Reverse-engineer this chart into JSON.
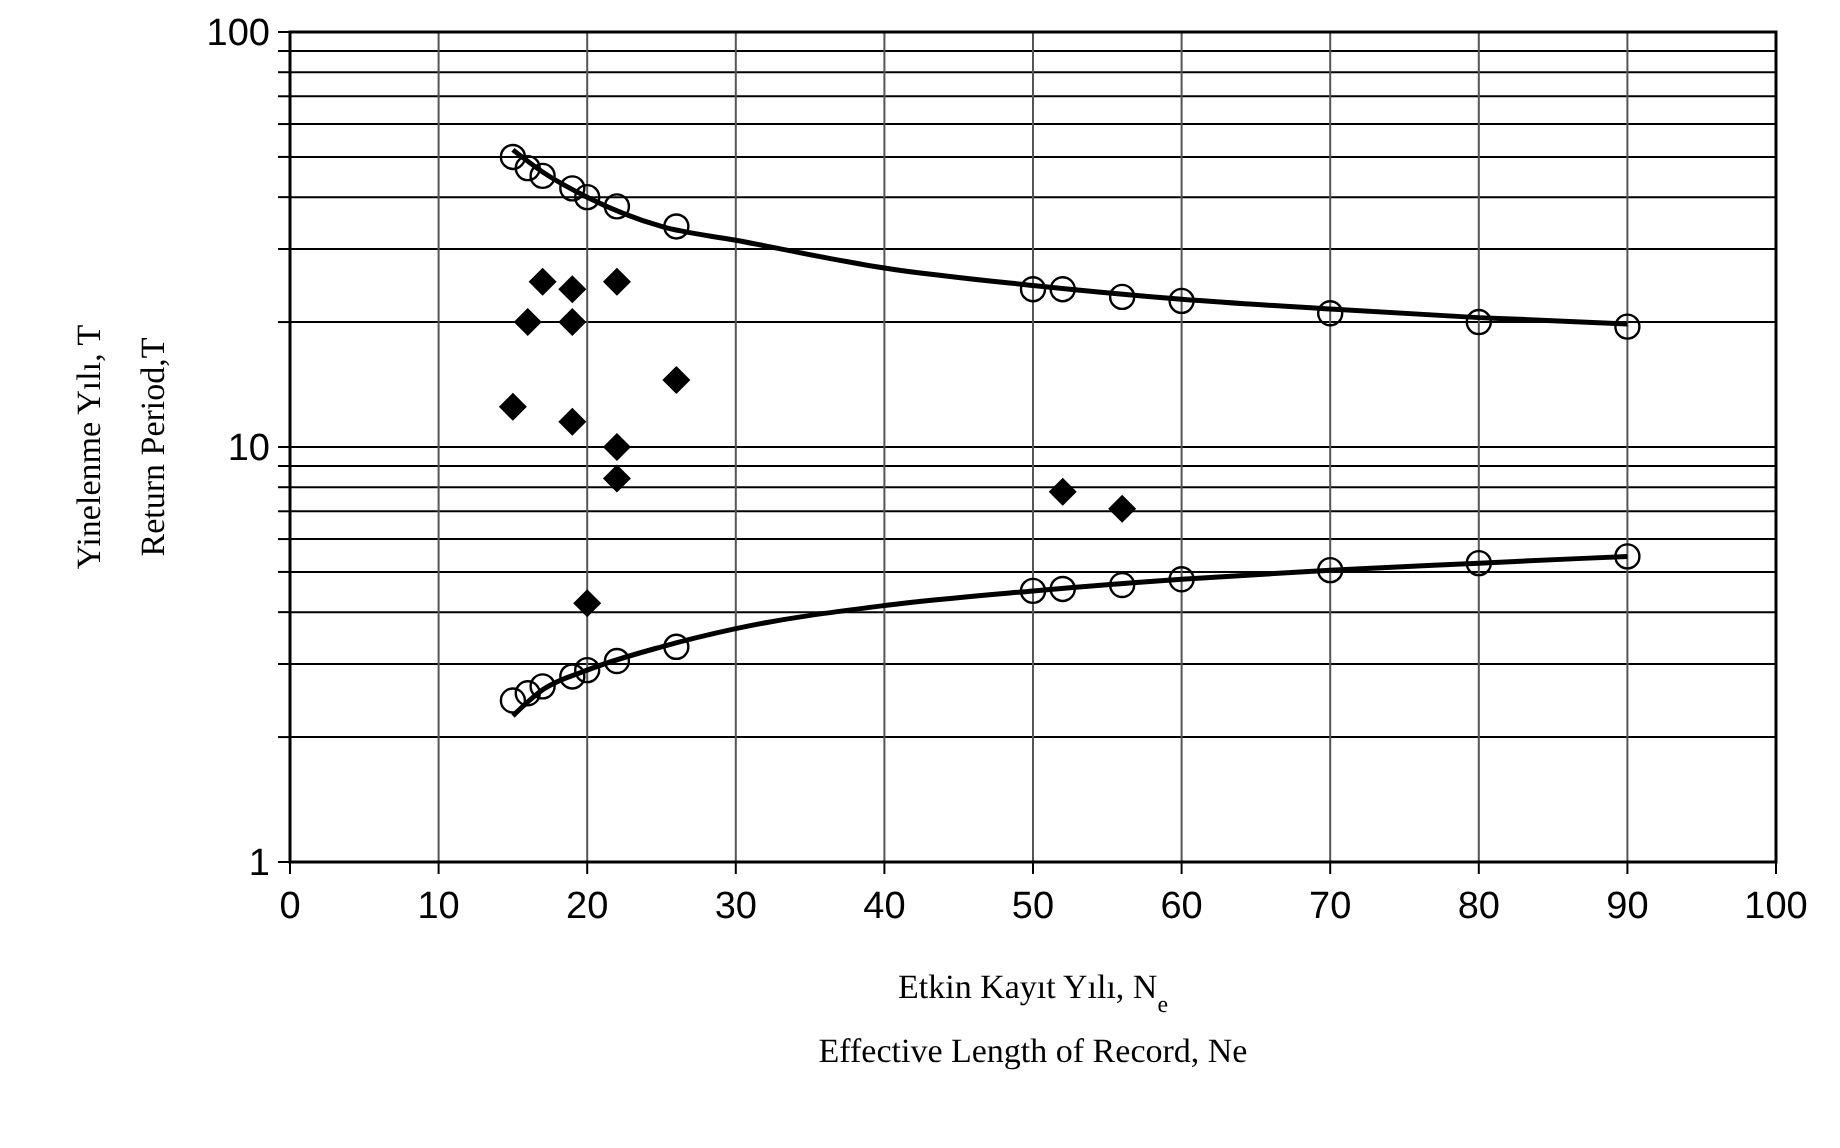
{
  "chart_data": {
    "type": "scatter",
    "xlabel": "Etkin Kayıt Yılı, N$_{e}$\nEffective Length of Record, Ne",
    "ylabel": "Yinelenme Yılı, T\nReturn Period,T",
    "log": "y",
    "grid": true,
    "xlim": [
      0,
      100
    ],
    "xticks": [
      0,
      10,
      20,
      30,
      40,
      50,
      60,
      70,
      80,
      90,
      100
    ],
    "ylim": [
      1,
      100
    ],
    "yticks": [
      1,
      {
        "value": 2,
        "label": null
      },
      {
        "value": 3,
        "label": null
      },
      {
        "value": 4,
        "label": null
      },
      {
        "value": 5,
        "label": null
      },
      {
        "value": 6,
        "label": null
      },
      {
        "value": 7,
        "label": null
      },
      {
        "value": 8,
        "label": null
      },
      {
        "value": 9,
        "label": null
      },
      10,
      {
        "value": 20,
        "label": null
      },
      {
        "value": 30,
        "label": null
      },
      {
        "value": 40,
        "label": null
      },
      {
        "value": 50,
        "label": null
      },
      {
        "value": 60,
        "label": null
      },
      {
        "value": 70,
        "label": null
      },
      {
        "value": 80,
        "label": null
      },
      {
        "value": 90,
        "label": null
      },
      100
    ],
    "series": [
      {
        "type": "line",
        "color": "#000000",
        "marker": "none",
        "line_style": "solid",
        "x": [
          15,
          17,
          20,
          25,
          30,
          40,
          50,
          60,
          70,
          80,
          90
        ],
        "values": [
          52,
          46,
          40,
          34,
          31.5,
          27,
          24.5,
          22.7,
          21.5,
          20.5,
          19.8
        ]
      },
      {
        "type": "line",
        "color": "#000000",
        "marker": "none",
        "line_style": "solid",
        "x": [
          15,
          17,
          20,
          25,
          30,
          40,
          50,
          60,
          70,
          80,
          90
        ],
        "values": [
          2.25,
          2.6,
          2.9,
          3.3,
          3.65,
          4.15,
          4.5,
          4.8,
          5.05,
          5.25,
          5.45
        ]
      },
      {
        "type": "scatter",
        "color": "#000000",
        "marker": "circle",
        "x": [
          15,
          16,
          17,
          19,
          20,
          22,
          26,
          50,
          52,
          56,
          60,
          70,
          80,
          90
        ],
        "values": [
          50,
          47,
          45,
          42,
          40,
          38,
          34,
          24,
          24,
          23,
          22.5,
          21,
          20,
          19.5
        ]
      },
      {
        "type": "scatter",
        "color": "#000000",
        "marker": "circle",
        "x": [
          15,
          16,
          17,
          19,
          20,
          22,
          26,
          50,
          52,
          56,
          60,
          70,
          80,
          90
        ],
        "values": [
          2.45,
          2.55,
          2.65,
          2.8,
          2.9,
          3.05,
          3.3,
          4.5,
          4.55,
          4.65,
          4.8,
          5.05,
          5.25,
          5.45
        ]
      },
      {
        "type": "scatter",
        "color": "#000000",
        "marker": "diamond",
        "x": [
          15,
          16,
          17,
          19,
          19,
          19,
          22,
          22,
          22,
          26,
          20,
          52,
          56
        ],
        "values": [
          12.5,
          20,
          25,
          24,
          20,
          11.5,
          25,
          10,
          8.4,
          14.5,
          4.2,
          7.8,
          7.1
        ]
      }
    ]
  }
}
